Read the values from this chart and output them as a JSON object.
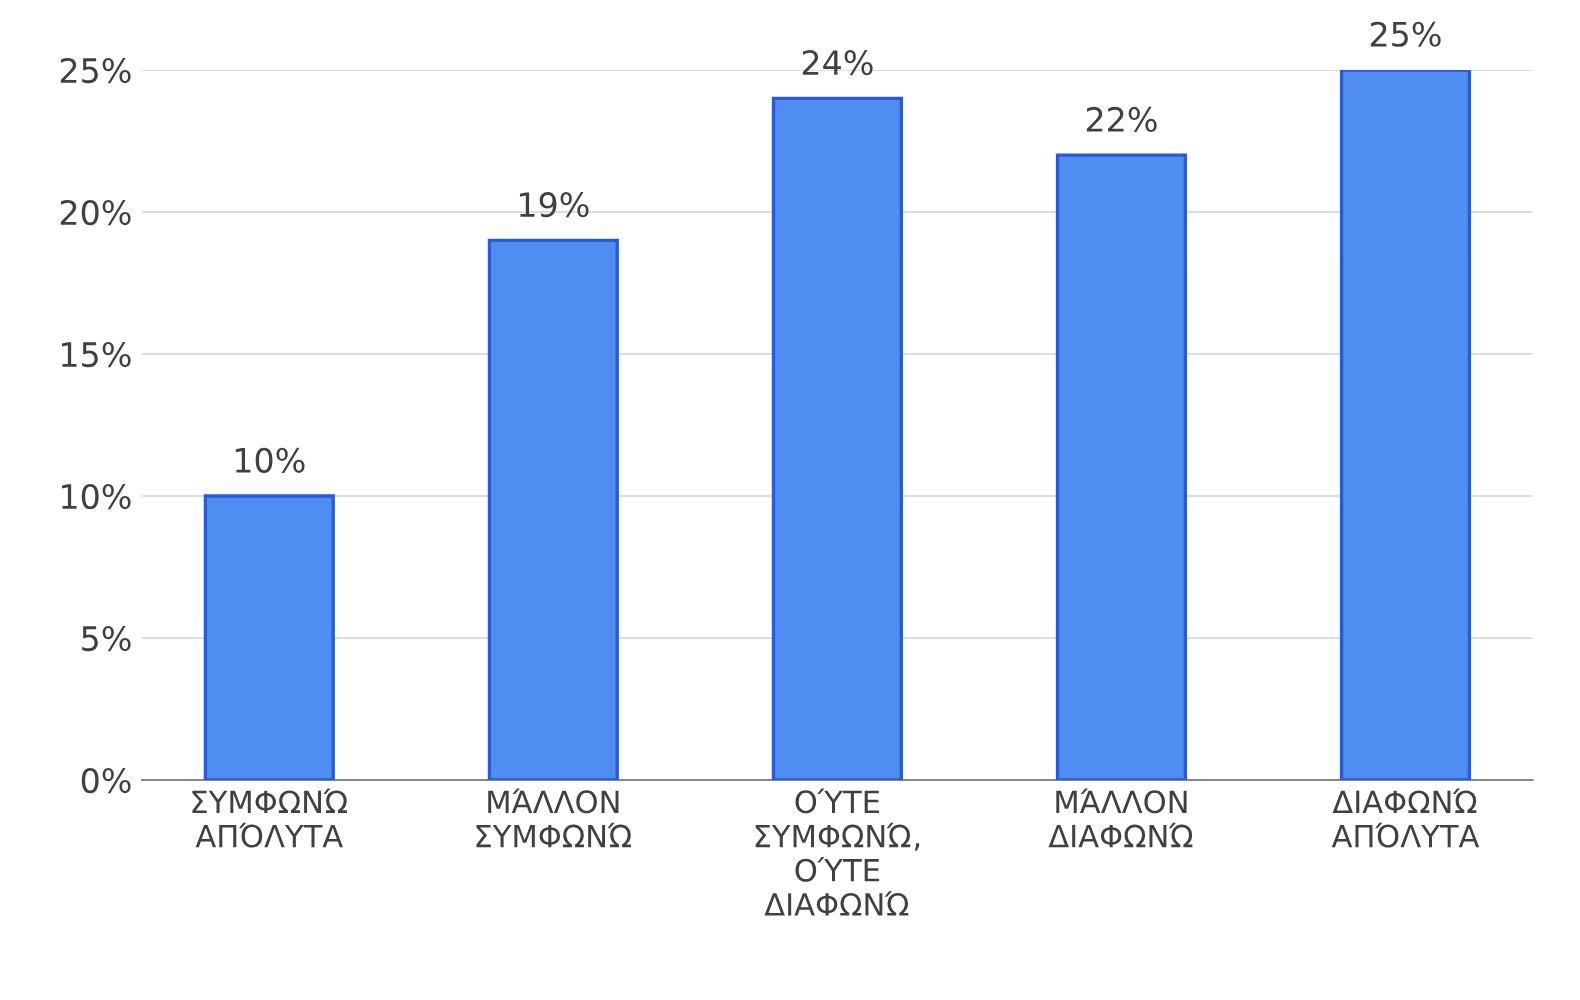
{
  "chart_data": {
    "type": "bar",
    "categories": [
      "ΣΥΜΦΩΝΏ\nΑΠΌΛΥΤΑ",
      "ΜΆΛΛΟΝ\nΣΥΜΦΩΝΏ",
      "ΟΎΤΕ\nΣΥΜΦΩΝΏ,\nΟΎΤΕ\nΔΙΑΦΩΝΏ",
      "ΜΆΛΛΟΝ\nΔΙΑΦΩΝΏ",
      "ΔΙΑΦΩΝΏ\nΑΠΌΛΥΤΑ"
    ],
    "values": [
      10,
      19,
      24,
      22,
      25
    ],
    "value_labels": [
      "10%",
      "19%",
      "24%",
      "22%",
      "25%"
    ],
    "color": "#4f8ef0",
    "ylim": [
      0,
      25
    ],
    "yticks": [
      {
        "value": 0,
        "label": "0%"
      },
      {
        "value": 5,
        "label": "5%"
      },
      {
        "value": 10,
        "label": "10%"
      },
      {
        "value": 15,
        "label": "15%"
      },
      {
        "value": 20,
        "label": "20%"
      },
      {
        "value": 25,
        "label": "25%"
      }
    ],
    "grid": "y"
  }
}
